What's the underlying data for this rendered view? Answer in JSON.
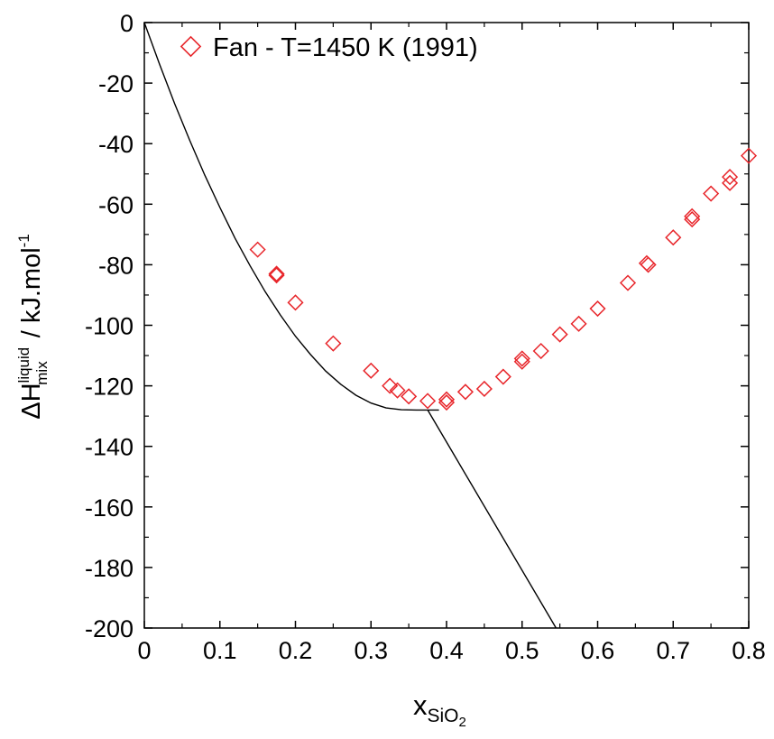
{
  "chart_data": {
    "type": "scatter",
    "xlabel": {
      "main": "x",
      "sub": "SiO",
      "subsub": "2"
    },
    "ylabel": {
      "prefix": "ΔH",
      "sup": "liquid",
      "sub": "mix",
      "suffix": " / kJ.mol",
      "unit_sup": "-1"
    },
    "xlim": [
      0,
      0.8
    ],
    "ylim": [
      -200,
      0
    ],
    "xticks": [
      "0",
      "0.1",
      "0.2",
      "0.3",
      "0.4",
      "0.5",
      "0.6",
      "0.7",
      "0.8"
    ],
    "yticks": [
      "0",
      "-20",
      "-40",
      "-60",
      "-80",
      "-100",
      "-120",
      "-140",
      "-160",
      "-180",
      "-200"
    ],
    "grid": false,
    "legend_position": "top-left",
    "colors": {
      "points": "#e8262b",
      "line": "#000000"
    },
    "series": [
      {
        "name": "Fan - T=1450 K (1991)",
        "kind": "markers",
        "marker": "diamond-open",
        "x": [
          0.15,
          0.175,
          0.175,
          0.2,
          0.25,
          0.3,
          0.325,
          0.335,
          0.35,
          0.375,
          0.4,
          0.4,
          0.425,
          0.45,
          0.475,
          0.5,
          0.5,
          0.525,
          0.55,
          0.575,
          0.6,
          0.64,
          0.665,
          0.667,
          0.7,
          0.725,
          0.725,
          0.75,
          0.775,
          0.775,
          0.8
        ],
        "y": [
          -75,
          -83,
          -83.5,
          -92.5,
          -106,
          -115,
          -120,
          -121.5,
          -123.5,
          -125,
          -124.5,
          -125.5,
          -122,
          -121,
          -117,
          -111,
          -112,
          -108.5,
          -103,
          -99.5,
          -94.5,
          -86,
          -79.5,
          -80,
          -71,
          -64,
          -65,
          -56.5,
          -51,
          -53,
          -44
        ]
      },
      {
        "name": "",
        "kind": "line",
        "x": [
          0,
          0.02,
          0.04,
          0.06,
          0.08,
          0.1,
          0.12,
          0.14,
          0.16,
          0.18,
          0.2,
          0.22,
          0.24,
          0.26,
          0.28,
          0.3,
          0.32,
          0.34,
          0.36,
          0.38,
          0.39
        ],
        "y": [
          0,
          -13.7,
          -26.7,
          -38.9,
          -50.4,
          -61.1,
          -71.2,
          -80.4,
          -88.9,
          -96.6,
          -103.6,
          -109.7,
          -115.1,
          -119.5,
          -123.1,
          -125.7,
          -127.3,
          -127.9,
          -128.0,
          -128.0,
          -128.0
        ]
      },
      {
        "name": "",
        "kind": "line",
        "x": [
          0.375,
          0.545
        ],
        "y": [
          -128,
          -200
        ]
      }
    ]
  }
}
